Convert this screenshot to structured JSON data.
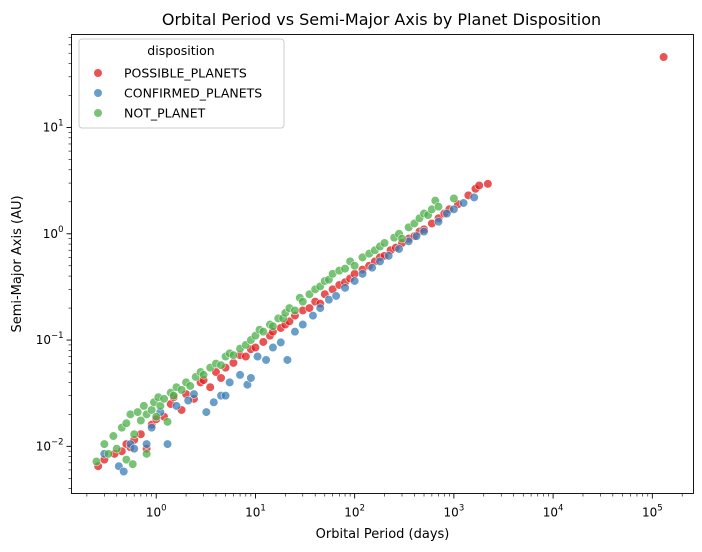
{
  "chart_data": {
    "type": "scatter",
    "title": "Orbital Period vs Semi-Major Axis by Planet Disposition",
    "xlabel": "Orbital Period (days)",
    "ylabel": "Semi-Major Axis (AU)",
    "x_scale": "log",
    "y_scale": "log",
    "xlim": [
      0.14,
      260000
    ],
    "ylim": [
      0.0036,
      75
    ],
    "x_ticks": [
      {
        "value": 1,
        "base": "10",
        "exp": "0"
      },
      {
        "value": 10,
        "base": "10",
        "exp": "1"
      },
      {
        "value": 100,
        "base": "10",
        "exp": "2"
      },
      {
        "value": 1000,
        "base": "10",
        "exp": "3"
      },
      {
        "value": 10000,
        "base": "10",
        "exp": "4"
      },
      {
        "value": 100000,
        "base": "10",
        "exp": "5"
      }
    ],
    "y_ticks": [
      {
        "value": 0.01,
        "base": "10",
        "exp": "−2"
      },
      {
        "value": 0.1,
        "base": "10",
        "exp": "−1"
      },
      {
        "value": 1,
        "base": "10",
        "exp": "0"
      },
      {
        "value": 10,
        "base": "10",
        "exp": "1"
      }
    ],
    "grid": false,
    "legend": {
      "title": "disposition",
      "placement": "upper-left"
    },
    "series": [
      {
        "name": "POSSIBLE_PLANETS",
        "color": "#e41a1c",
        "points": [
          [
            0.26,
            0.0065
          ],
          [
            0.3,
            0.0075
          ],
          [
            0.38,
            0.0085
          ],
          [
            0.45,
            0.009
          ],
          [
            0.5,
            0.0105
          ],
          [
            0.55,
            0.0098
          ],
          [
            0.6,
            0.0115
          ],
          [
            0.7,
            0.013
          ],
          [
            0.8,
            0.0095
          ],
          [
            0.9,
            0.016
          ],
          [
            1.0,
            0.018
          ],
          [
            1.2,
            0.019
          ],
          [
            1.4,
            0.025
          ],
          [
            1.5,
            0.029
          ],
          [
            1.8,
            0.022
          ],
          [
            2.0,
            0.031
          ],
          [
            2.4,
            0.028
          ],
          [
            2.8,
            0.04
          ],
          [
            3.0,
            0.042
          ],
          [
            3.5,
            0.036
          ],
          [
            4.0,
            0.05
          ],
          [
            4.5,
            0.044
          ],
          [
            5.0,
            0.055
          ],
          [
            6.0,
            0.061
          ],
          [
            7.0,
            0.072
          ],
          [
            8.0,
            0.07
          ],
          [
            9.0,
            0.082
          ],
          [
            10,
            0.085
          ],
          [
            12,
            0.096
          ],
          [
            14,
            0.11
          ],
          [
            15,
            0.12
          ],
          [
            18,
            0.13
          ],
          [
            20,
            0.14
          ],
          [
            22,
            0.15
          ],
          [
            25,
            0.17
          ],
          [
            30,
            0.19
          ],
          [
            35,
            0.2
          ],
          [
            40,
            0.23
          ],
          [
            45,
            0.22
          ],
          [
            50,
            0.27
          ],
          [
            60,
            0.3
          ],
          [
            70,
            0.33
          ],
          [
            80,
            0.35
          ],
          [
            90,
            0.38
          ],
          [
            100,
            0.42
          ],
          [
            120,
            0.46
          ],
          [
            140,
            0.5
          ],
          [
            160,
            0.55
          ],
          [
            180,
            0.6
          ],
          [
            200,
            0.62
          ],
          [
            230,
            0.7
          ],
          [
            260,
            0.74
          ],
          [
            300,
            0.82
          ],
          [
            350,
            0.9
          ],
          [
            400,
            0.95
          ],
          [
            450,
            1.05
          ],
          [
            500,
            1.1
          ],
          [
            600,
            1.25
          ],
          [
            700,
            1.4
          ],
          [
            800,
            1.55
          ],
          [
            900,
            1.7
          ],
          [
            1100,
            1.9
          ],
          [
            1400,
            2.3
          ],
          [
            1650,
            2.65
          ],
          [
            1800,
            2.85
          ],
          [
            2200,
            2.95
          ],
          [
            130000,
            46
          ]
        ]
      },
      {
        "name": "CONFIRMED_PLANETS",
        "color": "#377eb8",
        "points": [
          [
            0.3,
            0.0085
          ],
          [
            0.42,
            0.0065
          ],
          [
            0.47,
            0.0058
          ],
          [
            0.55,
            0.0105
          ],
          [
            0.6,
            0.0095
          ],
          [
            0.8,
            0.0105
          ],
          [
            0.9,
            0.015
          ],
          [
            1.1,
            0.021
          ],
          [
            1.3,
            0.0105
          ],
          [
            1.6,
            0.024
          ],
          [
            2.1,
            0.027
          ],
          [
            2.4,
            0.031
          ],
          [
            3.2,
            0.021
          ],
          [
            3.8,
            0.026
          ],
          [
            4.5,
            0.03
          ],
          [
            5.0,
            0.03
          ],
          [
            5.5,
            0.04
          ],
          [
            7.0,
            0.047
          ],
          [
            8.3,
            0.038
          ],
          [
            9.0,
            0.044
          ],
          [
            10.5,
            0.07
          ],
          [
            12.8,
            0.065
          ],
          [
            15,
            0.085
          ],
          [
            18,
            0.095
          ],
          [
            21,
            0.065
          ],
          [
            25,
            0.12
          ],
          [
            30,
            0.14
          ],
          [
            38,
            0.17
          ],
          [
            45,
            0.2
          ],
          [
            55,
            0.24
          ],
          [
            65,
            0.26
          ],
          [
            80,
            0.31
          ],
          [
            100,
            0.36
          ],
          [
            120,
            0.42
          ],
          [
            150,
            0.48
          ],
          [
            180,
            0.55
          ],
          [
            220,
            0.62
          ],
          [
            280,
            0.72
          ],
          [
            350,
            0.85
          ],
          [
            420,
            0.95
          ],
          [
            500,
            1.05
          ],
          [
            700,
            1.3
          ],
          [
            850,
            1.55
          ],
          [
            1000,
            1.7
          ],
          [
            1250,
            1.95
          ],
          [
            1600,
            2.2
          ]
        ]
      },
      {
        "name": "NOT_PLANET",
        "color": "#4daf4a",
        "points": [
          [
            0.25,
            0.0072
          ],
          [
            0.3,
            0.0105
          ],
          [
            0.33,
            0.0085
          ],
          [
            0.37,
            0.0125
          ],
          [
            0.4,
            0.0095
          ],
          [
            0.45,
            0.015
          ],
          [
            0.5,
            0.0165
          ],
          [
            0.5,
            0.0075
          ],
          [
            0.55,
            0.02
          ],
          [
            0.58,
            0.0068
          ],
          [
            0.6,
            0.013
          ],
          [
            0.65,
            0.021
          ],
          [
            0.7,
            0.0175
          ],
          [
            0.75,
            0.024
          ],
          [
            0.8,
            0.0085
          ],
          [
            0.8,
            0.02
          ],
          [
            0.9,
            0.022
          ],
          [
            0.95,
            0.026
          ],
          [
            1.0,
            0.019
          ],
          [
            1.05,
            0.029
          ],
          [
            1.1,
            0.024
          ],
          [
            1.2,
            0.028
          ],
          [
            1.3,
            0.017
          ],
          [
            1.4,
            0.032
          ],
          [
            1.5,
            0.03
          ],
          [
            1.6,
            0.036
          ],
          [
            1.8,
            0.034
          ],
          [
            2.0,
            0.04
          ],
          [
            2.2,
            0.037
          ],
          [
            2.5,
            0.045
          ],
          [
            2.8,
            0.05
          ],
          [
            3.0,
            0.047
          ],
          [
            3.5,
            0.055
          ],
          [
            4.0,
            0.06
          ],
          [
            4.5,
            0.058
          ],
          [
            5.0,
            0.07
          ],
          [
            5.5,
            0.075
          ],
          [
            6.0,
            0.072
          ],
          [
            7.0,
            0.083
          ],
          [
            8.0,
            0.09
          ],
          [
            9.0,
            0.1
          ],
          [
            10,
            0.11
          ],
          [
            11,
            0.125
          ],
          [
            12,
            0.12
          ],
          [
            14,
            0.14
          ],
          [
            15,
            0.135
          ],
          [
            17,
            0.16
          ],
          [
            19,
            0.16
          ],
          [
            20,
            0.18
          ],
          [
            22,
            0.2
          ],
          [
            25,
            0.19
          ],
          [
            28,
            0.25
          ],
          [
            30,
            0.23
          ],
          [
            35,
            0.27
          ],
          [
            40,
            0.3
          ],
          [
            45,
            0.32
          ],
          [
            50,
            0.36
          ],
          [
            55,
            0.37
          ],
          [
            60,
            0.42
          ],
          [
            70,
            0.45
          ],
          [
            80,
            0.47
          ],
          [
            90,
            0.55
          ],
          [
            100,
            0.5
          ],
          [
            120,
            0.6
          ],
          [
            140,
            0.65
          ],
          [
            160,
            0.7
          ],
          [
            180,
            0.76
          ],
          [
            200,
            0.82
          ],
          [
            250,
            0.92
          ],
          [
            280,
            1.0
          ],
          [
            300,
            0.9
          ],
          [
            350,
            1.15
          ],
          [
            400,
            1.25
          ],
          [
            450,
            1.4
          ],
          [
            500,
            1.55
          ],
          [
            550,
            1.5
          ],
          [
            600,
            1.7
          ],
          [
            650,
            2.05
          ],
          [
            700,
            1.8
          ],
          [
            1000,
            2.15
          ]
        ]
      }
    ]
  }
}
